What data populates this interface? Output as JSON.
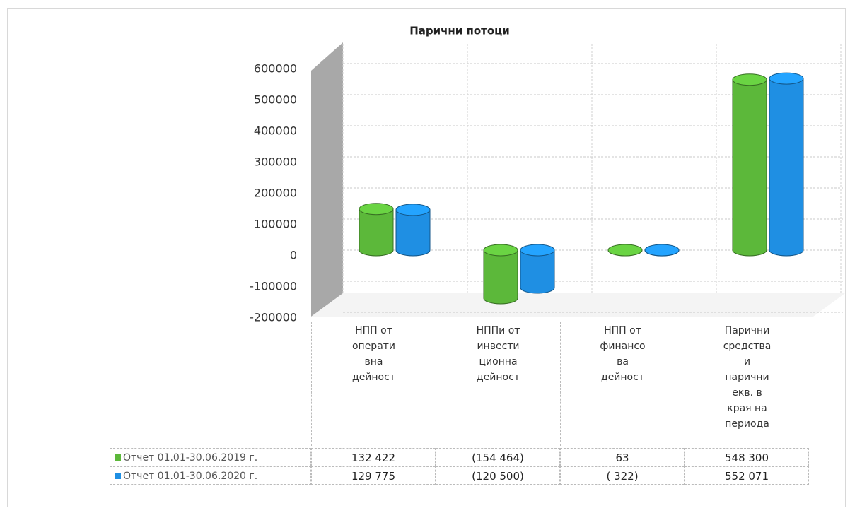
{
  "chart_data": {
    "type": "bar",
    "title": "Парични потоци",
    "categories": [
      "НПП от\nоперати\nвна\nдейност",
      "НППи от\nинвести\nционна\nдейност",
      "НПП от\nфинансо\nва\nдейност",
      "Парични\nсредства\nи\nпарични\nекв. в\nкрая на\nпериода"
    ],
    "series": [
      {
        "name": "Отчет 01.01-30.06.2019 г.",
        "color": "#5cb83a",
        "values": [
          132422,
          -154464,
          63,
          548300
        ],
        "value_labels": [
          "132 422",
          "(154 464)",
          "63",
          "548 300"
        ]
      },
      {
        "name": "Отчет 01.01-30.06.2020 г.",
        "color": "#1f8fe3",
        "values": [
          129775,
          -120500,
          -322,
          552071
        ],
        "value_labels": [
          "129 775",
          "(120 500)",
          "( 322)",
          "552 071"
        ]
      }
    ],
    "ylim": [
      -200000,
      600000
    ],
    "yticks": [
      -200000,
      -100000,
      0,
      100000,
      200000,
      300000,
      400000,
      500000,
      600000
    ],
    "grid": true
  }
}
